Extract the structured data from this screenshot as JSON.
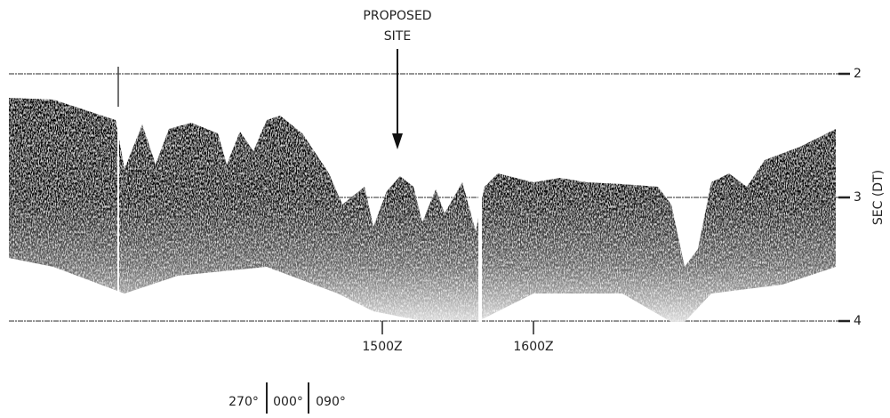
{
  "annotation": {
    "lines": [
      "PROPOSED",
      "SITE"
    ]
  },
  "y_axis": {
    "label": "SEC (DT)",
    "ticks": [
      2,
      3,
      4
    ]
  },
  "x_axis": {
    "labels": [
      "1500Z",
      "1600Z"
    ]
  },
  "headings": [
    "270°",
    "000°",
    "090°"
  ]
}
